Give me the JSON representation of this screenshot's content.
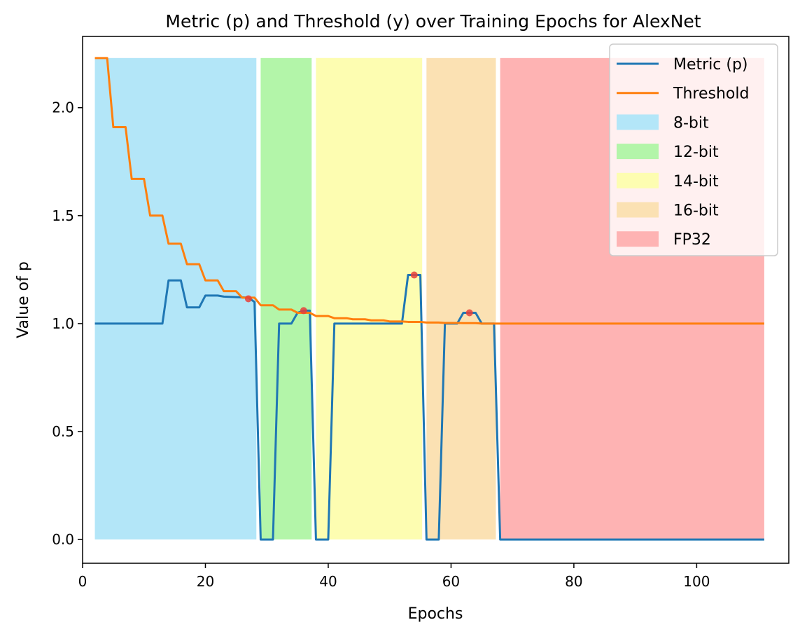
{
  "chart_data": {
    "type": "line",
    "title": "Metric (p) and Threshold (y) over Training Epochs for AlexNet",
    "xlabel": "Epochs",
    "ylabel": "Value of p",
    "xlim": [
      0,
      115
    ],
    "ylim": [
      -0.11,
      2.33
    ],
    "xticks": [
      0,
      20,
      40,
      60,
      80,
      100
    ],
    "yticks": [
      "0.0",
      "0.5",
      "1.0",
      "1.5",
      "2.0"
    ],
    "legend_position": "top-right",
    "regions": [
      {
        "name": "8-bit",
        "x0": 2,
        "x1": 28.3,
        "color": "#b3e6f8"
      },
      {
        "name": "12-bit",
        "x0": 29,
        "x1": 37.3,
        "color": "#b3f5a9"
      },
      {
        "name": "14-bit",
        "x0": 38,
        "x1": 55.3,
        "color": "#fdfdb1"
      },
      {
        "name": "16-bit",
        "x0": 56,
        "x1": 67.3,
        "color": "#fbe1b3"
      },
      {
        "name": "FP32",
        "x0": 68,
        "x1": 111,
        "color": "#feb3b3"
      }
    ],
    "series": [
      {
        "name": "Metric (p)",
        "color": "#1f77b4",
        "x": [
          2,
          13,
          14,
          16,
          17,
          19,
          20,
          22,
          23,
          27,
          28,
          29,
          31,
          32,
          34,
          35,
          36,
          37,
          38,
          40,
          41,
          52,
          53,
          55,
          56,
          58,
          59,
          61,
          62,
          64,
          65,
          67,
          68,
          111
        ],
        "y": [
          1.0,
          1.0,
          1.2,
          1.2,
          1.075,
          1.075,
          1.13,
          1.13,
          1.125,
          1.12,
          1.1,
          0.0,
          0.0,
          1.0,
          1.0,
          1.05,
          1.06,
          1.06,
          0.0,
          0.0,
          1.0,
          1.0,
          1.225,
          1.225,
          0.0,
          0.0,
          1.0,
          1.0,
          1.05,
          1.05,
          1.0,
          1.0,
          0.0,
          0.0
        ]
      },
      {
        "name": "Threshold",
        "color": "#ff7f0e",
        "x": [
          2,
          4,
          5,
          7,
          8,
          10,
          11,
          13,
          14,
          16,
          17,
          19,
          20,
          22,
          23,
          25,
          26,
          28,
          29,
          31,
          32,
          34,
          35,
          37,
          38,
          40,
          41,
          43,
          44,
          46,
          47,
          49,
          50,
          52,
          53,
          55,
          56,
          58,
          59,
          61,
          62,
          64,
          65,
          111
        ],
        "y": [
          2.23,
          2.23,
          1.91,
          1.91,
          1.67,
          1.67,
          1.5,
          1.5,
          1.37,
          1.37,
          1.275,
          1.275,
          1.2,
          1.2,
          1.15,
          1.15,
          1.12,
          1.12,
          1.085,
          1.085,
          1.065,
          1.065,
          1.05,
          1.05,
          1.035,
          1.035,
          1.025,
          1.025,
          1.02,
          1.02,
          1.015,
          1.015,
          1.01,
          1.01,
          1.008,
          1.008,
          1.005,
          1.005,
          1.003,
          1.003,
          1.002,
          1.002,
          1.0,
          1.0
        ]
      }
    ],
    "markers": {
      "color": "#e8403a",
      "points": [
        {
          "x": 27,
          "y": 1.115
        },
        {
          "x": 36,
          "y": 1.06
        },
        {
          "x": 54,
          "y": 1.225
        },
        {
          "x": 63,
          "y": 1.05
        }
      ]
    }
  }
}
